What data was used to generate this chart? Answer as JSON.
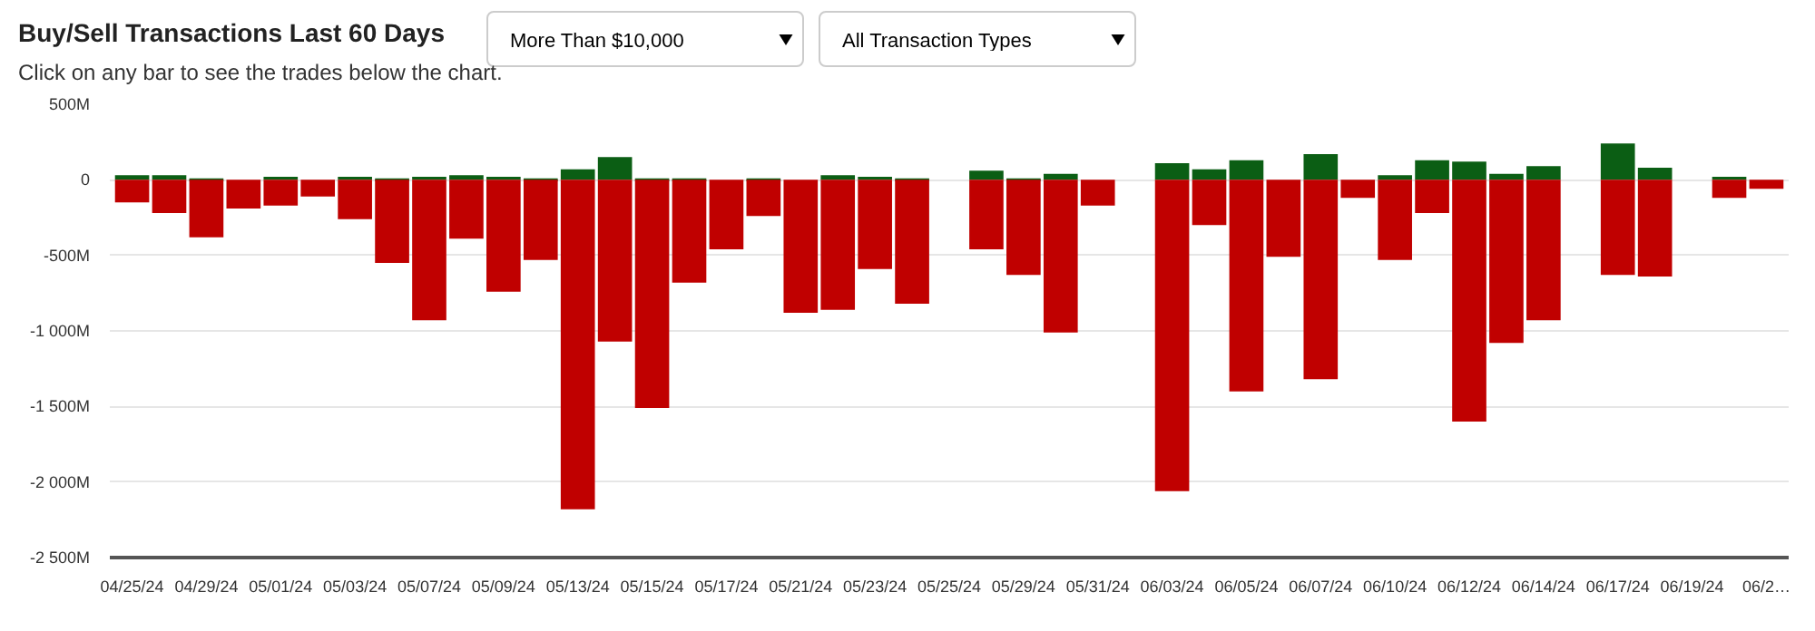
{
  "chart_data": {
    "type": "bar",
    "title": "Buy/Sell Transactions Last 60 Days",
    "subtitle": "Click on any bar to see the trades below the chart.",
    "annotations": [
      "More Than $10,000",
      "All Transaction Types"
    ],
    "categories": [
      "04/25/24",
      null,
      "04/29/24",
      null,
      "05/01/24",
      null,
      "05/03/24",
      null,
      "05/07/24",
      null,
      "05/09/24",
      null,
      "05/13/24",
      null,
      "05/15/24",
      null,
      "05/17/24",
      null,
      "05/21/24",
      null,
      "05/23/24",
      null,
      "05/25/24",
      null,
      "05/29/24",
      null,
      "05/31/24",
      null,
      "06/03/24",
      null,
      "06/05/24",
      null,
      "06/07/24",
      null,
      "06/10/24",
      null,
      "06/12/24",
      null,
      "06/14/24",
      null,
      "06/17/24",
      null,
      "06/19/24",
      null,
      "06/2…"
    ],
    "stacked": true,
    "series": [
      {
        "color": "#0b5e14",
        "values": [
          30,
          30,
          0,
          null,
          20,
          null,
          20,
          0,
          20,
          30,
          20,
          0,
          70,
          150,
          0,
          0,
          null,
          0,
          null,
          30,
          20,
          0,
          null,
          60,
          0,
          40,
          null,
          null,
          110,
          70,
          130,
          null,
          170,
          null,
          30,
          130,
          120,
          40,
          90,
          null,
          240,
          80,
          null,
          20,
          null
        ]
      },
      {
        "color": "#c00000",
        "values": [
          -150,
          -220,
          -380,
          -190,
          -170,
          -110,
          -260,
          -550,
          -930,
          -390,
          -740,
          -530,
          -2180,
          -1070,
          -1510,
          -680,
          -460,
          -240,
          -880,
          -860,
          -590,
          -820,
          null,
          -460,
          -630,
          -1010,
          -170,
          null,
          -2060,
          -300,
          -1400,
          -510,
          -1320,
          -120,
          -530,
          -220,
          -1600,
          -1080,
          -930,
          null,
          -630,
          -640,
          null,
          -120,
          -60
        ]
      }
    ],
    "ylim": [
      -2500,
      500
    ],
    "yticks": [
      {
        "value": 500,
        "label": "500M"
      },
      0,
      {
        "value": -500,
        "label": "-500M"
      },
      {
        "value": -1000,
        "label": "-1 000M"
      },
      {
        "value": -1500,
        "label": "-1 500M"
      },
      {
        "value": -2000,
        "label": "-2 000M"
      },
      {
        "value": -2500,
        "label": "-2 500M"
      }
    ],
    "grid": "y"
  }
}
